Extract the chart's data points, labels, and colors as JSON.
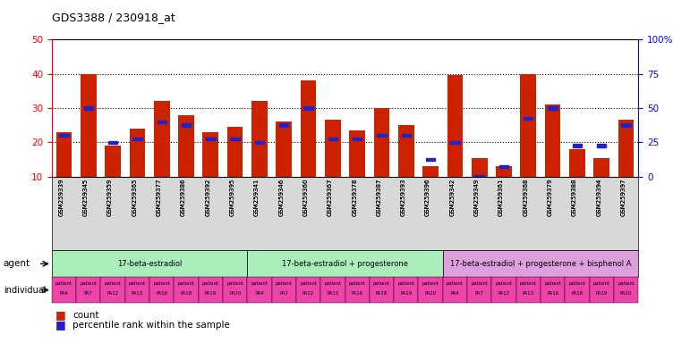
{
  "title": "GDS3388 / 230918_at",
  "gsm_labels": [
    "GSM259339",
    "GSM259345",
    "GSM259359",
    "GSM259365",
    "GSM259377",
    "GSM259386",
    "GSM259392",
    "GSM259395",
    "GSM259341",
    "GSM259346",
    "GSM259360",
    "GSM259367",
    "GSM259378",
    "GSM259387",
    "GSM259393",
    "GSM259396",
    "GSM259342",
    "GSM259349",
    "GSM259361",
    "GSM259368",
    "GSM259379",
    "GSM259388",
    "GSM259394",
    "GSM259397"
  ],
  "count_values": [
    23,
    40,
    19,
    24,
    32,
    28,
    23,
    24.5,
    32,
    26,
    38,
    26.5,
    23.5,
    30,
    25,
    13,
    39.5,
    15.5,
    13,
    40,
    31,
    18,
    15.5,
    26.5
  ],
  "percentile_values": [
    22,
    30,
    20,
    21,
    26,
    25,
    21,
    21,
    20,
    25,
    30,
    21,
    21,
    22,
    22,
    15,
    20,
    10,
    13,
    27,
    30,
    19,
    19,
    25
  ],
  "agent_groups": [
    {
      "label": "17-beta-estradiol",
      "start": 0,
      "end": 8,
      "color": "#AAEEBB"
    },
    {
      "label": "17-beta-estradiol + progesterone",
      "start": 8,
      "end": 16,
      "color": "#AAEEBB"
    },
    {
      "label": "17-beta-estradiol + progesterone + bisphenol A",
      "start": 16,
      "end": 24,
      "color": "#DDA0DD"
    }
  ],
  "individual_labels": [
    "patient\nPA4",
    "patient\nPA7",
    "patient\nPA12",
    "patient\nPA13",
    "patient\nPA16",
    "patient\nPA18",
    "patient\nPA19",
    "patient\nPA20",
    "patient\nPA4",
    "patient\nPA7",
    "patient\nPA12",
    "patient\nPA13",
    "patient\nPA16",
    "patient\nPA18",
    "patient\nPA19",
    "patient\nPA20",
    "patient\nPA4",
    "patient\nPA7",
    "patient\nPA12",
    "patient\nPA13",
    "patient\nPA16",
    "patient\nPA18",
    "patient\nPA19",
    "patient\nPA20"
  ],
  "bar_color": "#CC2200",
  "blue_color": "#2222CC",
  "ylim_left": [
    10,
    50
  ],
  "ylim_right": [
    0,
    100
  ],
  "yticks_left": [
    10,
    20,
    30,
    40,
    50
  ],
  "yticks_right": [
    0,
    25,
    50,
    75,
    100
  ],
  "ytick_labels_right": [
    "0",
    "25",
    "50",
    "75",
    "100%"
  ],
  "xticklabel_bg": "#E0E0E0",
  "agent_row_color_1": "#AADDBB",
  "agent_row_color_2": "#BBDDAA",
  "agent_row_color_3": "#DDA0DD",
  "indiv_row_color": "#EE66BB"
}
